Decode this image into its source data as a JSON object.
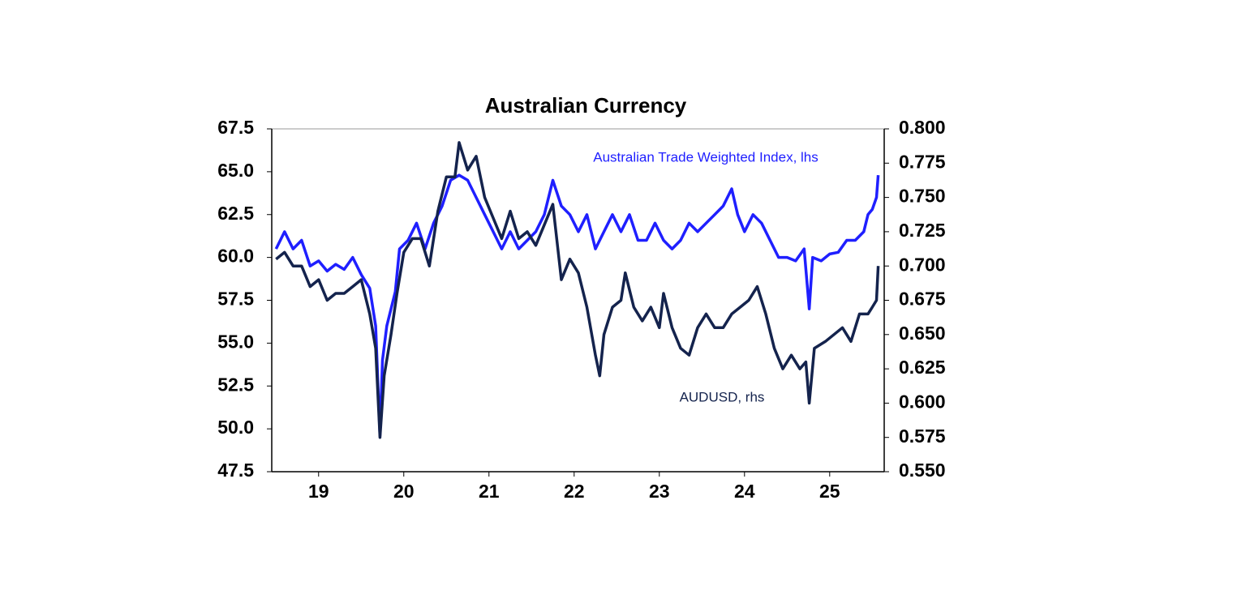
{
  "chart_data": {
    "type": "line",
    "title": "Australian Currency",
    "annotations": [
      "Australian Trade Weighted Index, lhs",
      "AUDUSD, rhs"
    ],
    "xlim": [
      18.95,
      26.14
    ],
    "xticks": [
      {
        "value": 19.5,
        "label": "19"
      },
      {
        "value": 20.5,
        "label": "20"
      },
      {
        "value": 21.5,
        "label": "21"
      },
      {
        "value": 22.5,
        "label": "22"
      },
      {
        "value": 23.5,
        "label": "23"
      },
      {
        "value": 24.5,
        "label": "24"
      },
      {
        "value": 25.5,
        "label": "25"
      }
    ],
    "ylim": [
      47.5,
      67.5
    ],
    "yticks": [
      47.5,
      {
        "value": 50,
        "label": "50.0"
      },
      52.5,
      {
        "value": 55,
        "label": "55.0"
      },
      57.5,
      {
        "value": 60,
        "label": "60.0"
      },
      62.5,
      {
        "value": 65,
        "label": "65.0"
      },
      67.5
    ],
    "y2lim": [
      0.55,
      0.8
    ],
    "y2ticks": [
      {
        "value": 0.55,
        "label": "0.550"
      },
      0.575,
      {
        "value": 0.6,
        "label": "0.600"
      },
      0.625,
      {
        "value": 0.65,
        "label": "0.650"
      },
      0.675,
      {
        "value": 0.7,
        "label": "0.700"
      },
      0.725,
      {
        "value": 0.75,
        "label": "0.750"
      },
      0.775,
      {
        "value": 0.8,
        "label": "0.800"
      }
    ],
    "series": [
      {
        "name": "Australian Trade Weighted Index",
        "color": "#1f1fff",
        "x": [
          19.0,
          19.1,
          19.2,
          19.3,
          19.4,
          19.5,
          19.6,
          19.7,
          19.8,
          19.9,
          20.0,
          20.1,
          20.17,
          20.22,
          20.25,
          20.3,
          20.4,
          20.45,
          20.55,
          20.65,
          20.75,
          20.85,
          20.95,
          21.05,
          21.15,
          21.25,
          21.35,
          21.45,
          21.55,
          21.65,
          21.75,
          21.85,
          21.95,
          22.05,
          22.15,
          22.25,
          22.35,
          22.45,
          22.55,
          22.65,
          22.75,
          22.85,
          22.95,
          23.05,
          23.15,
          23.25,
          23.35,
          23.45,
          23.55,
          23.65,
          23.75,
          23.85,
          23.95,
          24.05,
          24.15,
          24.25,
          24.35,
          24.42,
          24.5,
          24.6,
          24.7,
          24.8,
          24.9,
          25.0,
          25.1,
          25.2,
          25.26,
          25.3,
          25.4,
          25.5,
          25.6,
          25.7,
          25.8,
          25.9,
          25.95,
          26.0,
          26.05,
          26.07
        ],
        "values": [
          60.5,
          61.5,
          60.5,
          61,
          59.5,
          59.8,
          59.2,
          59.6,
          59.3,
          60,
          59.0,
          58.2,
          56,
          49.6,
          54,
          56,
          58,
          60.5,
          61,
          62,
          60.5,
          62,
          63,
          64.5,
          64.8,
          64.5,
          63.5,
          62.5,
          61.5,
          60.5,
          61.5,
          60.5,
          61,
          61.5,
          62.5,
          64.5,
          63,
          62.5,
          61.5,
          62.5,
          60.5,
          61.5,
          62.5,
          61.5,
          62.5,
          61,
          61,
          62,
          61,
          60.5,
          61,
          62,
          61.5,
          62,
          62.5,
          63,
          64,
          62.5,
          61.5,
          62.5,
          62,
          61,
          60,
          60,
          59.8,
          60.5,
          57,
          60,
          59.8,
          60.2,
          60.3,
          61,
          61,
          61.5,
          62.5,
          62.8,
          63.5,
          64.8
        ]
      },
      {
        "name": "AUDUSD",
        "color": "#14234d",
        "axis": "y2",
        "x": [
          19.0,
          19.1,
          19.2,
          19.3,
          19.4,
          19.5,
          19.6,
          19.7,
          19.8,
          19.9,
          20.0,
          20.1,
          20.17,
          20.22,
          20.27,
          20.35,
          20.42,
          20.5,
          20.6,
          20.7,
          20.8,
          20.9,
          21.0,
          21.1,
          21.15,
          21.25,
          21.35,
          21.45,
          21.55,
          21.65,
          21.75,
          21.85,
          21.95,
          22.05,
          22.15,
          22.25,
          22.35,
          22.45,
          22.55,
          22.65,
          22.75,
          22.8,
          22.85,
          22.95,
          23.05,
          23.1,
          23.2,
          23.3,
          23.4,
          23.5,
          23.55,
          23.65,
          23.75,
          23.85,
          23.95,
          24.05,
          24.15,
          24.25,
          24.35,
          24.45,
          24.55,
          24.65,
          24.75,
          24.85,
          24.95,
          25.05,
          25.15,
          25.22,
          25.26,
          25.32,
          25.45,
          25.55,
          25.65,
          25.75,
          25.85,
          25.95,
          26.0,
          26.05,
          26.07
        ],
        "values": [
          0.705,
          0.71,
          0.7,
          0.7,
          0.685,
          0.69,
          0.675,
          0.68,
          0.68,
          0.685,
          0.69,
          0.665,
          0.64,
          0.575,
          0.62,
          0.65,
          0.68,
          0.71,
          0.72,
          0.72,
          0.7,
          0.74,
          0.765,
          0.765,
          0.79,
          0.77,
          0.78,
          0.75,
          0.735,
          0.72,
          0.74,
          0.72,
          0.725,
          0.715,
          0.73,
          0.745,
          0.69,
          0.705,
          0.695,
          0.67,
          0.635,
          0.62,
          0.65,
          0.67,
          0.675,
          0.695,
          0.67,
          0.66,
          0.67,
          0.655,
          0.68,
          0.655,
          0.64,
          0.635,
          0.655,
          0.665,
          0.655,
          0.655,
          0.665,
          0.67,
          0.675,
          0.685,
          0.665,
          0.64,
          0.625,
          0.635,
          0.625,
          0.63,
          0.6,
          0.64,
          0.645,
          0.65,
          0.655,
          0.645,
          0.665,
          0.665,
          0.67,
          0.675,
          0.7
        ]
      }
    ]
  }
}
